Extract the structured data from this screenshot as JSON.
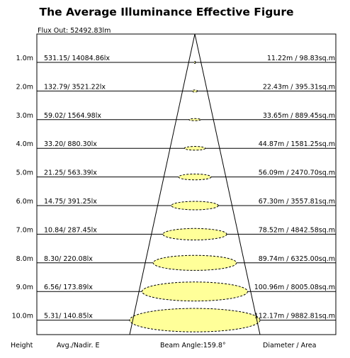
{
  "title": "The Average Illuminance Effective Figure",
  "flux_out": "Flux Out: 52492.83lm",
  "footer": {
    "height": "Height",
    "avg": "Avg./Nadir. E",
    "beam_angle": "Beam Angle:159.8°",
    "diameter_area": "Diameter / Area"
  },
  "colors": {
    "ellipse_fill": "#ffff99",
    "line": "#000000"
  },
  "rows": [
    {
      "height": "1.0m",
      "illuminance": "531.15/ 14084.86lx",
      "diameter_area": "11.22m / 98.83sq.m",
      "diameter_m": 11.22
    },
    {
      "height": "2.0m",
      "illuminance": "132.79/ 3521.22lx",
      "diameter_area": "22.43m / 395.31sq.m",
      "diameter_m": 22.43
    },
    {
      "height": "3.0m",
      "illuminance": "59.02/ 1564.98lx",
      "diameter_area": "33.65m / 889.45sq.m",
      "diameter_m": 33.65
    },
    {
      "height": "4.0m",
      "illuminance": "33.20/ 880.30lx",
      "diameter_area": "44.87m / 1581.25sq.m",
      "diameter_m": 44.87
    },
    {
      "height": "5.0m",
      "illuminance": "21.25/ 563.39lx",
      "diameter_area": "56.09m / 2470.70sq.m",
      "diameter_m": 56.09
    },
    {
      "height": "6.0m",
      "illuminance": "14.75/ 391.25lx",
      "diameter_area": "67.30m / 3557.81sq.m",
      "diameter_m": 67.3
    },
    {
      "height": "7.0m",
      "illuminance": "10.84/ 287.45lx",
      "diameter_area": "78.52m / 4842.58sq.m",
      "diameter_m": 78.52
    },
    {
      "height": "8.0m",
      "illuminance": "8.30/ 220.08lx",
      "diameter_area": "89.74m / 6325.00sq.m",
      "diameter_m": 89.74
    },
    {
      "height": "9.0m",
      "illuminance": "6.56/ 173.89lx",
      "diameter_area": "100.96m / 8005.08sq.m",
      "diameter_m": 100.96
    },
    {
      "height": "10.0m",
      "illuminance": "5.31/ 140.85lx",
      "diameter_area": "112.17m / 9882.81sq.m",
      "diameter_m": 112.17
    }
  ]
}
